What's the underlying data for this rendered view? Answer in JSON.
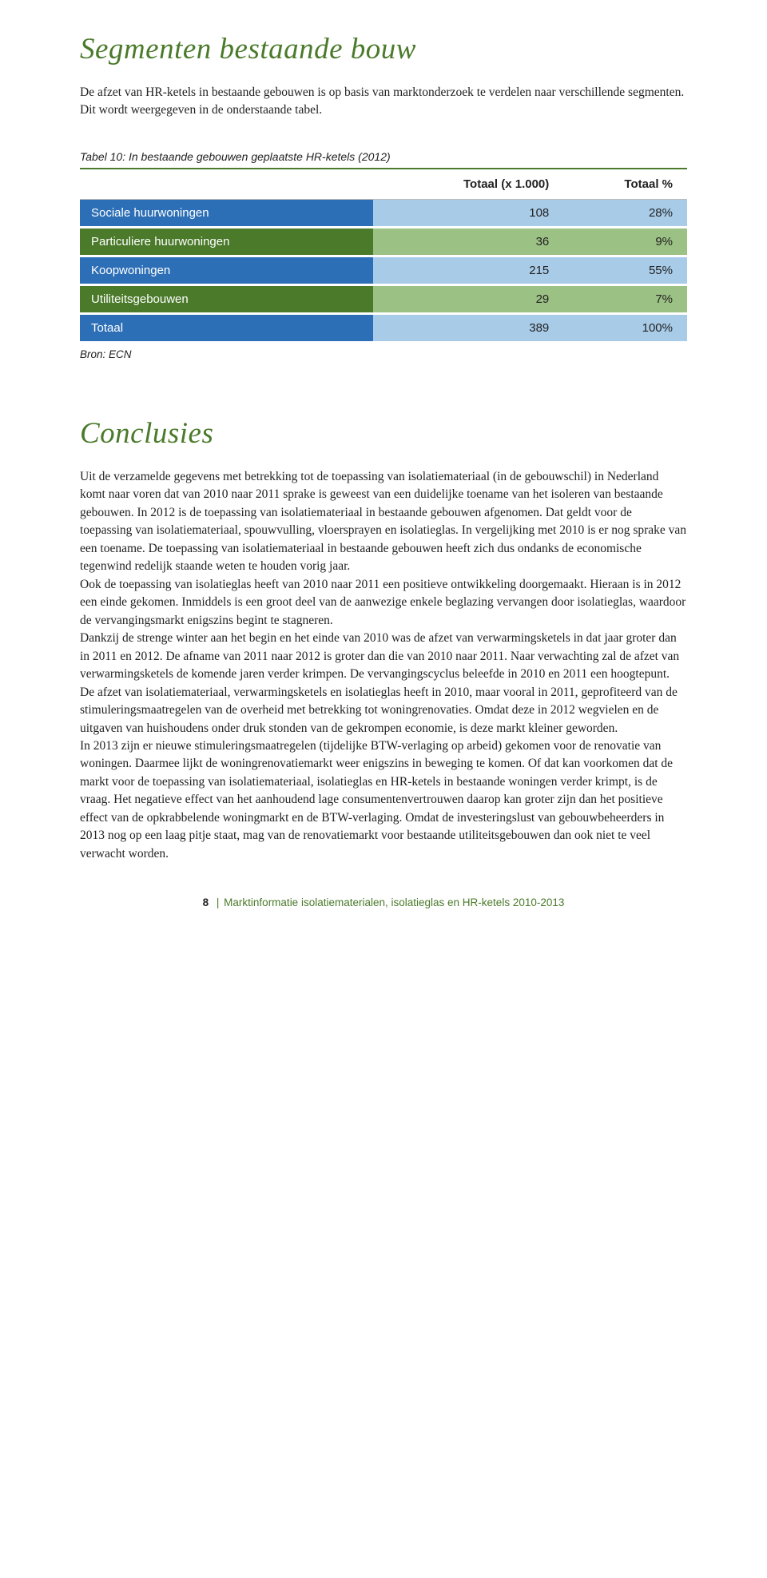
{
  "section1": {
    "title": "Segmenten bestaande bouw",
    "intro": "De afzet van HR-ketels in bestaande gebouwen is op basis van marktonderzoek te verdelen naar verschillende segmenten. Dit wordt weergegeven in de onderstaande tabel."
  },
  "table10": {
    "caption": "Tabel 10: In bestaande gebouwen geplaatste HR-ketels (2012)",
    "headers": [
      "",
      "Totaal (x 1.000)",
      "Totaal %"
    ],
    "rows": [
      {
        "label": "Sociale huurwoningen",
        "val": "108",
        "pct": "28%",
        "label_color": "#2d6fb6",
        "val_color": "#a8cbe8",
        "pct_color": "#a8cbe8"
      },
      {
        "label": "Particuliere huurwoningen",
        "val": "36",
        "pct": "9%",
        "label_color": "#4a7a2a",
        "val_color": "#9cc184",
        "pct_color": "#9cc184"
      },
      {
        "label": "Koopwoningen",
        "val": "215",
        "pct": "55%",
        "label_color": "#2d6fb6",
        "val_color": "#a8cbe8",
        "pct_color": "#a8cbe8"
      },
      {
        "label": "Utiliteitsgebouwen",
        "val": "29",
        "pct": "7%",
        "label_color": "#4a7a2a",
        "val_color": "#9cc184",
        "pct_color": "#9cc184"
      },
      {
        "label": "Totaal",
        "val": "389",
        "pct": "100%",
        "label_color": "#2d6fb6",
        "val_color": "#a8cbe8",
        "pct_color": "#a8cbe8"
      }
    ],
    "source": "Bron: ECN"
  },
  "section2": {
    "title": "Conclusies",
    "body": "Uit de verzamelde gegevens met betrekking tot de toepassing van isolatiemateriaal (in de gebouwschil) in Nederland komt naar voren dat van 2010 naar 2011 sprake is geweest van een duidelijke toename van het isoleren van bestaande gebouwen. In 2012 is de toepassing van isolatiemateriaal in bestaande gebouwen afgenomen. Dat geldt voor de toepassing van isolatiemateriaal, spouwvulling, vloersprayen en isolatieglas. In vergelijking met 2010 is er nog sprake van een toename. De toepassing van isolatiemateriaal in bestaande gebouwen heeft zich dus ondanks de economische tegenwind redelijk staande weten te houden vorig jaar.\nOok de toepassing van isolatieglas heeft van 2010 naar 2011 een positieve ontwikkeling doorgemaakt. Hieraan is in 2012 een einde gekomen. Inmiddels is een groot deel van de aanwezige enkele beglazing vervangen door isolatieglas, waardoor de vervangingsmarkt enigszins begint te stagneren.\nDankzij de strenge winter aan het begin en het einde van 2010 was de afzet van verwarmings­ketels in dat jaar groter dan in 2011 en 2012. De afname van 2011 naar 2012 is groter dan die van 2010 naar 2011. Naar verwachting zal de afzet van verwarmingsketels de komende jaren verder krimpen. De vervangingscyclus beleefde in 2010 en 2011 een hoogtepunt.\nDe afzet van isolatiemateriaal, verwarmingsketels en isolatieglas heeft in 2010, maar vooral in 2011, geprofiteerd van de stimuleringsmaatregelen van de overheid met betrekking tot woningrenovaties. Omdat deze in 2012 wegvielen en de uitgaven van huishoudens onder druk stonden van de gekrompen economie, is deze markt kleiner geworden.\nIn 2013 zijn er nieuwe stimuleringsmaatregelen (tijdelijke BTW-verlaging op arbeid) gekomen voor de renovatie van woningen. Daarmee lijkt de woningrenovatiemarkt weer enigszins in beweging te komen. Of dat kan voorkomen dat de markt voor de toepassing van isolatiemate­riaal, isolatieglas en HR-ketels in bestaande woningen verder krimpt, is de vraag. Het negatieve effect van het aanhoudend lage consumentenvertrouwen daarop kan groter zijn dan het positieve effect van de opkrabbelende woningmarkt en de BTW-verlaging. Omdat de investeringslust van gebouwbeheerders in 2013 nog op een laag pitje staat, mag van de renovatiemarkt voor bestaande utiliteitsgebouwen dan ook niet te veel verwacht worden."
  },
  "footer": {
    "page": "8",
    "sep": "|",
    "title": "Marktinformatie isolatiematerialen, isolatieglas en HR-ketels 2010-2013"
  },
  "colors": {
    "heading_green": "#4a7a2a",
    "blue_dark": "#2d6fb6",
    "blue_light": "#a8cbe8",
    "green_dark": "#4a7a2a",
    "green_light": "#9cc184",
    "text": "#222222",
    "white": "#ffffff"
  }
}
